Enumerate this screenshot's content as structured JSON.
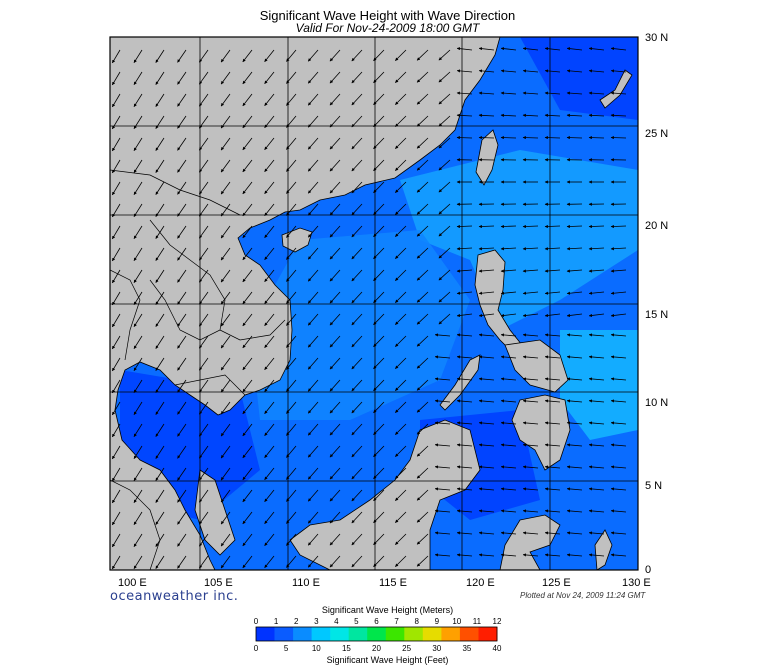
{
  "title": "Significant Wave Height with Wave Direction",
  "subtitle": "Valid For Nov-24-2009 18:00 GMT",
  "brand": "oceanweather inc.",
  "plotted": "Plotted at Nov 24, 2009 11:24 GMT",
  "lon_labels": [
    "100 E",
    "105 E",
    "110 E",
    "115 E",
    "120 E",
    "125 E",
    "130 E"
  ],
  "lat_labels": [
    "30 N",
    "25 N",
    "20 N",
    "15 N",
    "10 N",
    "5 N",
    "0"
  ],
  "colorbar": {
    "title_top": "Significant Wave Height (Meters)",
    "title_bottom": "Significant Wave Height (Feet)",
    "meters": [
      "0",
      "1",
      "2",
      "3",
      "4",
      "5",
      "6",
      "7",
      "8",
      "9",
      "10",
      "11",
      "12"
    ],
    "feet": [
      "0",
      "5",
      "10",
      "15",
      "20",
      "25",
      "30",
      "35",
      "40"
    ],
    "colors": [
      "#0033ff",
      "#0a5cff",
      "#0a8cff",
      "#00c8ff",
      "#00e6e6",
      "#00e6a0",
      "#00e64b",
      "#3ce600",
      "#a0e600",
      "#e6dc00",
      "#ffa000",
      "#ff5000",
      "#ff1e00"
    ]
  },
  "colors": {
    "land": "#c0c0c0",
    "ocean_deep": "#0033ff",
    "ocean_mid": "#0a6cff",
    "ocean_light": "#14a0ff"
  }
}
